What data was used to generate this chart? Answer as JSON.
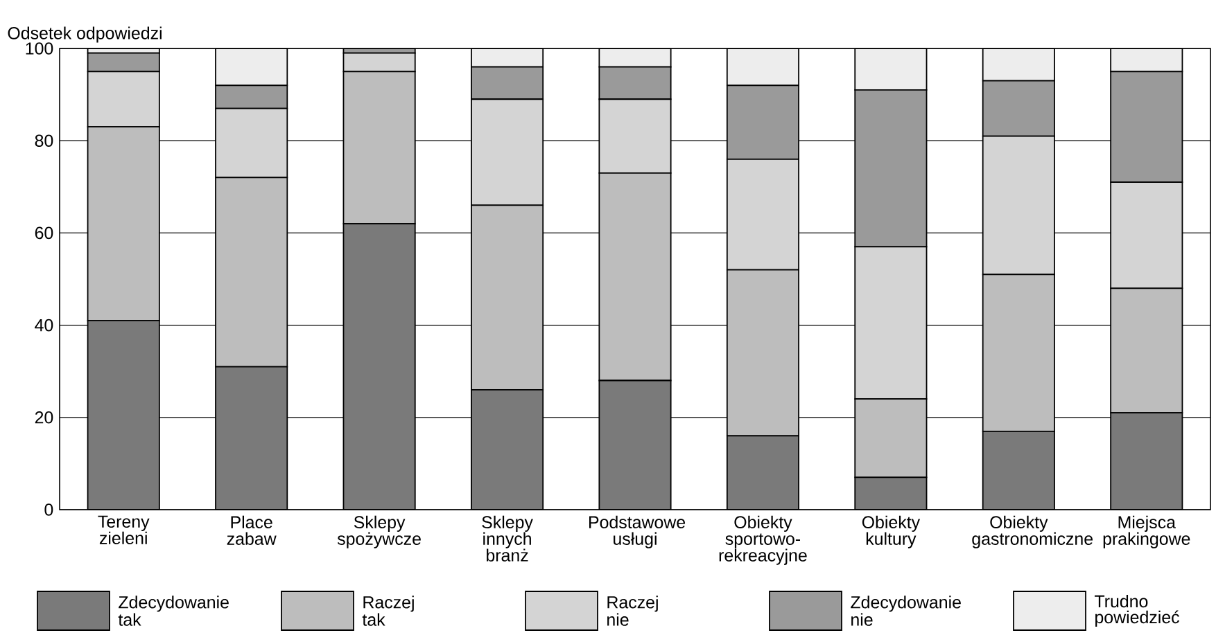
{
  "chart_data": {
    "type": "bar",
    "stacked": true,
    "ylabel": "Odsetek odpowiedzi",
    "categories": [
      "Tereny zieleni",
      "Place zabaw",
      "Sklepy spożywcze",
      "Sklepy innych branż",
      "Podstawowe usługi",
      "Obiekty sportowo-rekreacyjne",
      "Obiekty kultury",
      "Obiekty gastronomiczne",
      "Miejsca prakingowe"
    ],
    "series": [
      {
        "name": "Zdecydowanie tak",
        "color": "#7a7a7a",
        "values": [
          41,
          31,
          62,
          26,
          28,
          16,
          7,
          17,
          21
        ]
      },
      {
        "name": "Raczej tak",
        "color": "#bdbdbd",
        "values": [
          42,
          41,
          33,
          40,
          45,
          36,
          17,
          34,
          27
        ]
      },
      {
        "name": "Raczej nie",
        "color": "#d4d4d4",
        "values": [
          12,
          15,
          4,
          23,
          16,
          24,
          33,
          30,
          23
        ]
      },
      {
        "name": "Zdecydowanie nie",
        "color": "#9a9a9a",
        "values": [
          4,
          5,
          1,
          7,
          7,
          16,
          34,
          12,
          24
        ]
      },
      {
        "name": "Trudno powiedzieć",
        "color": "#ededed",
        "values": [
          1,
          8,
          0,
          4,
          4,
          8,
          9,
          7,
          5
        ]
      }
    ],
    "ylim": [
      0,
      100
    ],
    "yticks": [
      0,
      20,
      40,
      60,
      80,
      100
    ],
    "grid": "y",
    "legend": "bottom"
  }
}
